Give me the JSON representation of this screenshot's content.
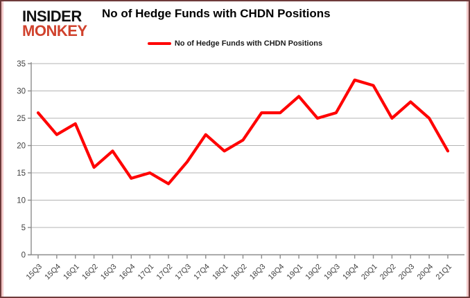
{
  "brand": {
    "line1": "INSIDER",
    "line2": "MONKEY"
  },
  "header": {
    "title": "No of Hedge Funds with CHDN Positions"
  },
  "legend": {
    "label": "No of Hedge Funds with CHDN Positions"
  },
  "colors": {
    "series_red": "#ff0000",
    "logo_red": "#d0422d",
    "grid_gray": "#b3b3b3",
    "axis_gray": "#8c8c8c",
    "tick_text": "#3f3f3f"
  },
  "chart_data": {
    "type": "line",
    "title": "No of Hedge Funds with CHDN Positions",
    "legend_entries": [
      "No of Hedge Funds with CHDN Positions"
    ],
    "legend_position": "top-center",
    "grid": "horizontal",
    "series_color": "#ff0000",
    "categories": [
      "15Q3",
      "15Q4",
      "16Q1",
      "16Q2",
      "16Q3",
      "16Q4",
      "17Q1",
      "17Q2",
      "17Q3",
      "17Q4",
      "18Q1",
      "18Q2",
      "18Q3",
      "18Q4",
      "19Q1",
      "19Q2",
      "19Q3",
      "19Q4",
      "20Q1",
      "20Q2",
      "20Q3",
      "20Q4",
      "21Q1"
    ],
    "values": [
      26,
      22,
      24,
      16,
      19,
      14,
      15,
      13,
      17,
      22,
      19,
      21,
      26,
      26,
      29,
      25,
      26,
      32,
      31,
      25,
      28,
      25,
      19
    ],
    "xlabel": "",
    "ylabel": "",
    "ylim": [
      0,
      35
    ],
    "ytick_step": 5
  }
}
